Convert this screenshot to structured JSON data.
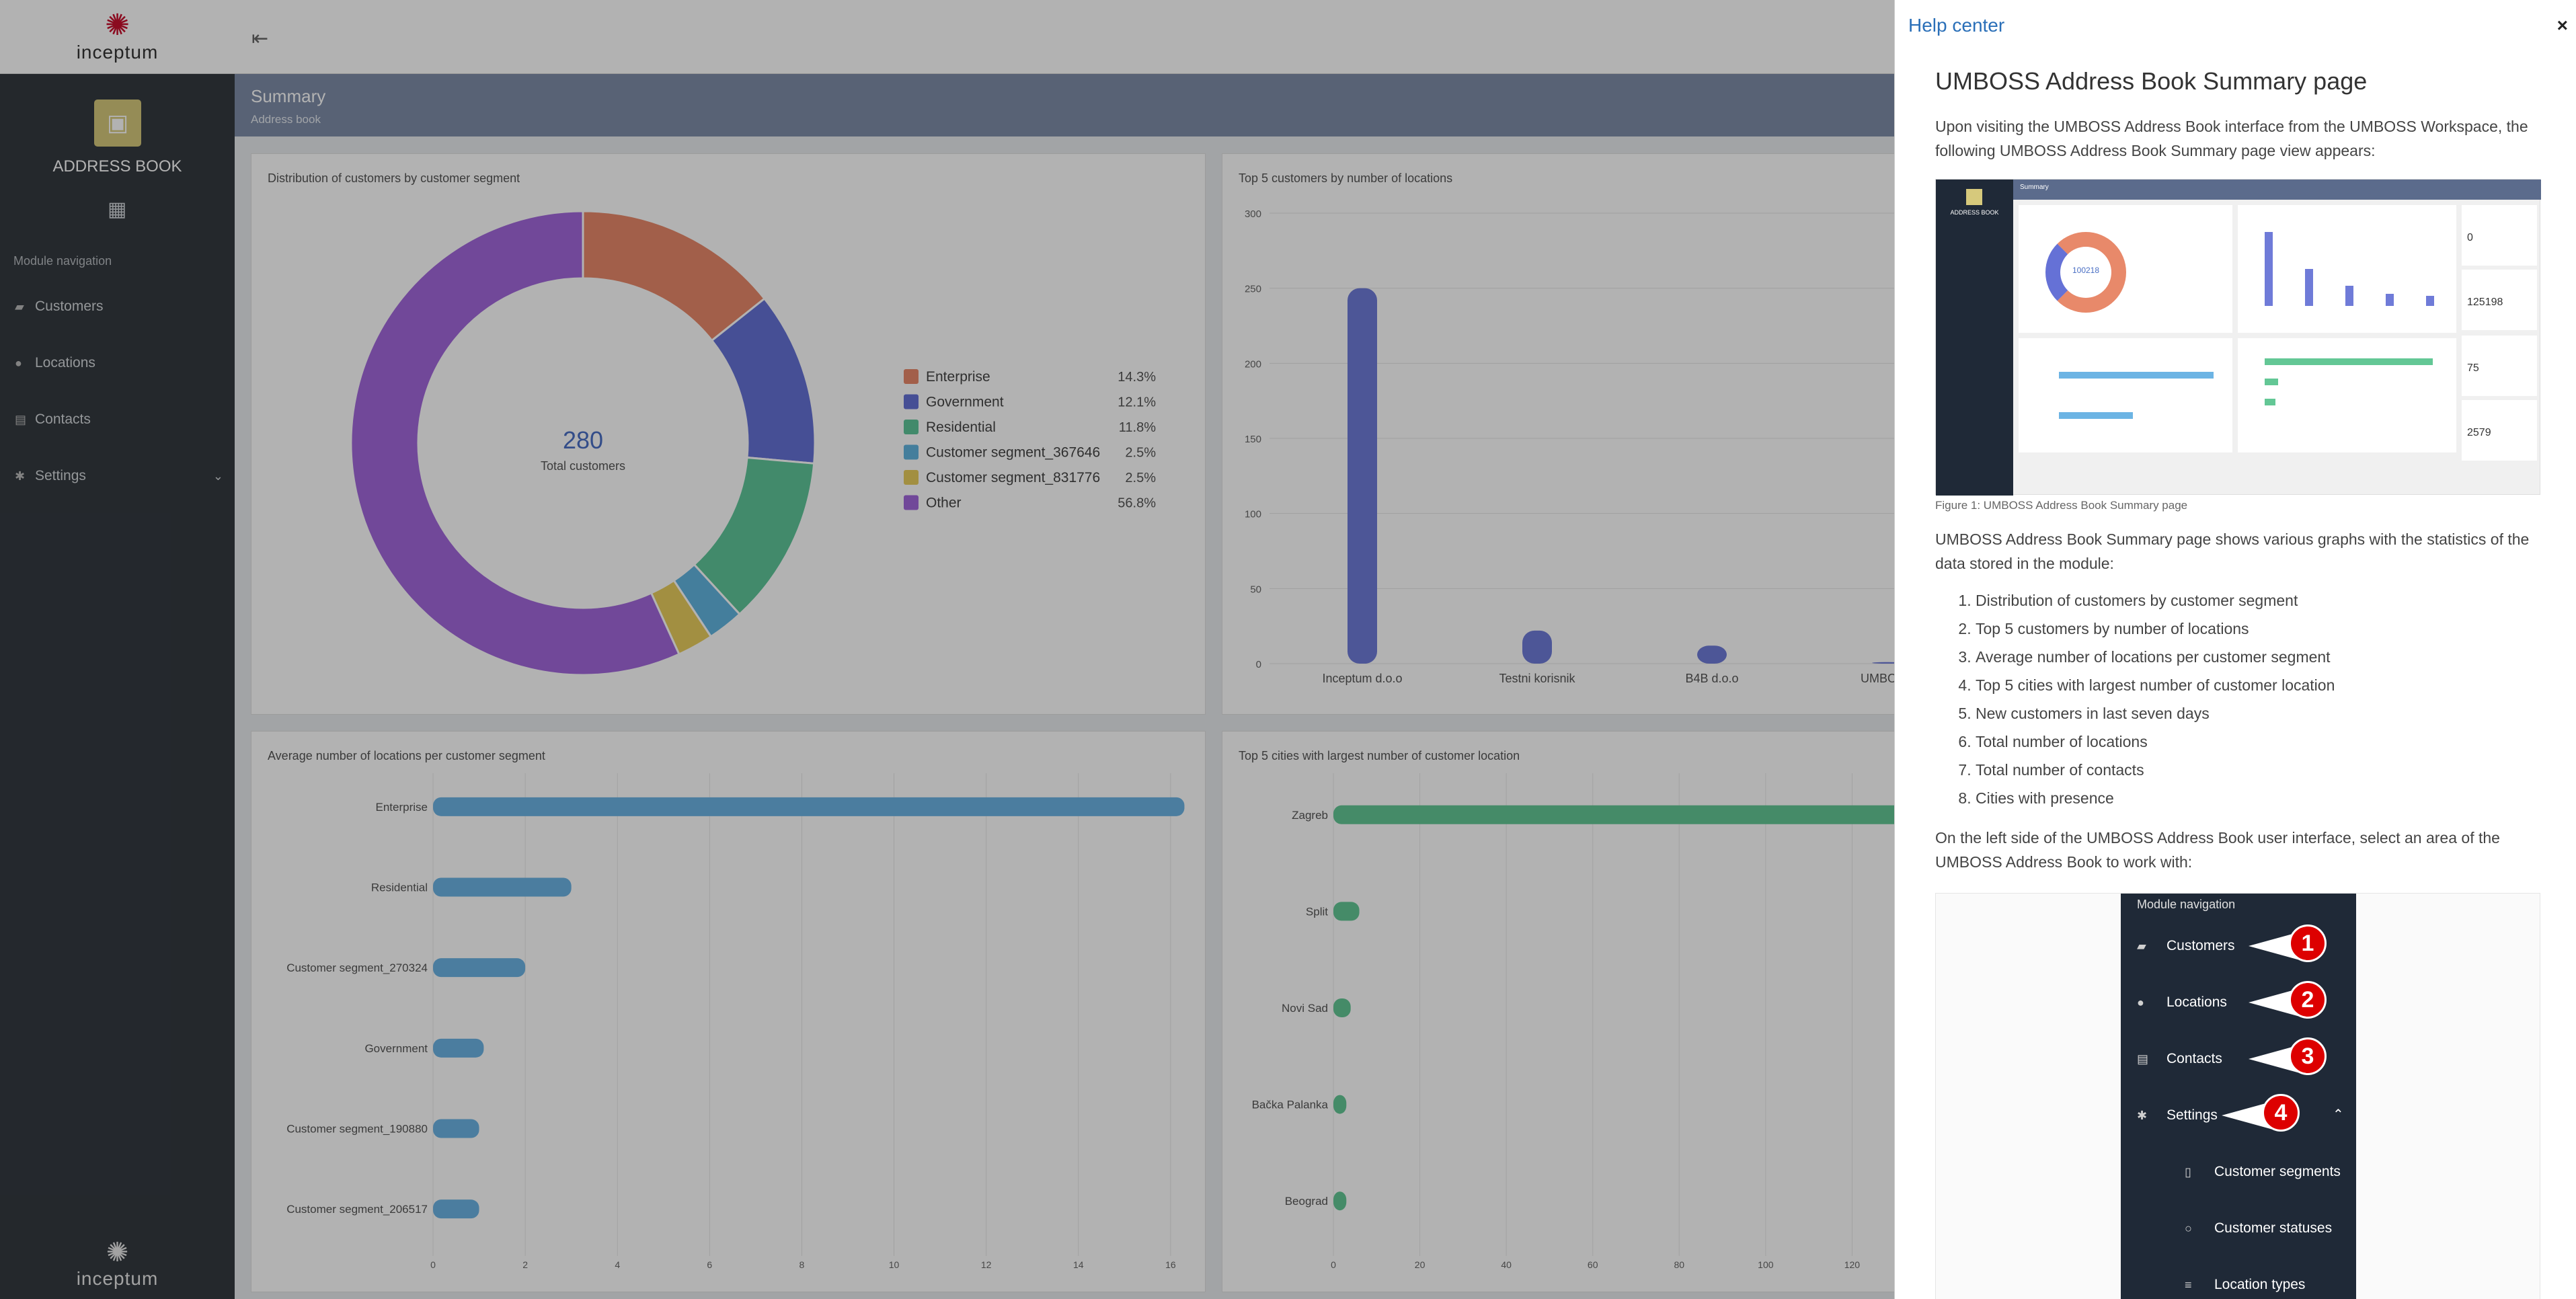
{
  "app": {
    "logo_text": "inceptum",
    "module_title": "ADDRESS BOOK",
    "nav_heading": "Module navigation",
    "nav": [
      {
        "label": "Customers",
        "icon": "briefcase-icon"
      },
      {
        "label": "Locations",
        "icon": "map-pin-icon"
      },
      {
        "label": "Contacts",
        "icon": "contact-card-icon"
      },
      {
        "label": "Settings",
        "icon": "gear-icon"
      }
    ]
  },
  "header": {
    "title": "Summary",
    "subtitle": "Address book"
  },
  "cards": {
    "donut_title": "Distribution of customers by customer segment",
    "top_customers_title": "Top 5 customers by number of locations",
    "avg_locations_title": "Average number of locations per customer segment",
    "top_cities_title": "Top 5 cities with largest number of customer location"
  },
  "donut_center": {
    "value": "280",
    "label": "Total customers"
  },
  "chart_data": [
    {
      "type": "pie",
      "title": "Distribution of customers by customer segment",
      "categories": [
        "Enterprise",
        "Government",
        "Residential",
        "Customer segment_367646",
        "Customer segment_831776",
        "Other"
      ],
      "values": [
        14.3,
        12.1,
        11.8,
        2.5,
        2.5,
        56.8
      ],
      "value_labels": [
        "14.3%",
        "12.1%",
        "11.8%",
        "2.5%",
        "2.5%",
        "56.8%"
      ],
      "colors": [
        "#e8896a",
        "#6571d6",
        "#5fc69a",
        "#62b5e0",
        "#e9cd5d",
        "#a267dc"
      ]
    },
    {
      "type": "bar",
      "title": "Top 5 customers by number of locations",
      "categories": [
        "Inceptum d.o.o",
        "Testni korisnik",
        "B4B d.o.o",
        "UMBOSS"
      ],
      "values": [
        250,
        22,
        12,
        1
      ],
      "ylim": [
        0,
        300
      ],
      "yticks": [
        "0",
        "50",
        "100",
        "150",
        "200",
        "250",
        "300"
      ],
      "color": "#6f7bd8"
    },
    {
      "type": "bar",
      "orientation": "horizontal",
      "title": "Average number of locations per customer segment",
      "categories": [
        "Enterprise",
        "Residential",
        "Customer segment_270324",
        "Government",
        "Customer segment_190880",
        "Customer segment_206517"
      ],
      "values": [
        16.3,
        3.0,
        2.0,
        1.1,
        1.0,
        1.0
      ],
      "xlim": [
        0,
        18
      ],
      "xticks": [
        "0",
        "2",
        "4",
        "6",
        "8",
        "10",
        "12",
        "14",
        "16",
        "18"
      ],
      "color": "#6cb4e4"
    },
    {
      "type": "bar",
      "orientation": "horizontal",
      "title": "Top 5 cities with largest number of customer location",
      "categories": [
        "Zagreb",
        "Split",
        "Novi Sad",
        "Bačka Palanka",
        "Beograd"
      ],
      "values": [
        140,
        6,
        4,
        3,
        3
      ],
      "xlim": [
        0,
        140
      ],
      "xticks": [
        "0",
        "20",
        "40",
        "60",
        "80",
        "100",
        "120"
      ],
      "color": "#63c795"
    }
  ],
  "help": {
    "panel_title": "Help center",
    "heading": "UMBOSS Address Book Summary page",
    "intro": "Upon visiting the UMBOSS Address Book interface from the UMBOSS Workspace, the following UMBOSS Address Book Summary page view appears:",
    "figure_caption": "Figure 1: UMBOSS Address Book Summary page",
    "summary_text": "UMBOSS Address Book Summary page shows various graphs with the statistics of the data stored in the module:",
    "list": [
      "Distribution of customers by customer segment",
      "Top 5 customers by number of locations",
      "Average number of locations per customer segment",
      "Top 5 cities with largest number of customer location",
      "New customers in last seven days",
      "Total number of locations",
      "Total number of contacts",
      "Cities with presence"
    ],
    "left_side_text": "On the left side of the UMBOSS Address Book user interface, select an area of the UMBOSS Address Book to work with:",
    "thumb": {
      "header": "Summary",
      "module": "ADDRESS BOOK",
      "donut_value": "100218",
      "stat1": "0",
      "stat2": "125198",
      "stat3": "75",
      "stat4": "2579"
    },
    "nav_image": {
      "heading": "Module navigation",
      "items": [
        "Customers",
        "Locations",
        "Contacts",
        "Settings"
      ],
      "numbers": [
        "1",
        "2",
        "3",
        "4"
      ],
      "subitems": [
        "Customer segments",
        "Customer statuses",
        "Location types"
      ]
    }
  }
}
